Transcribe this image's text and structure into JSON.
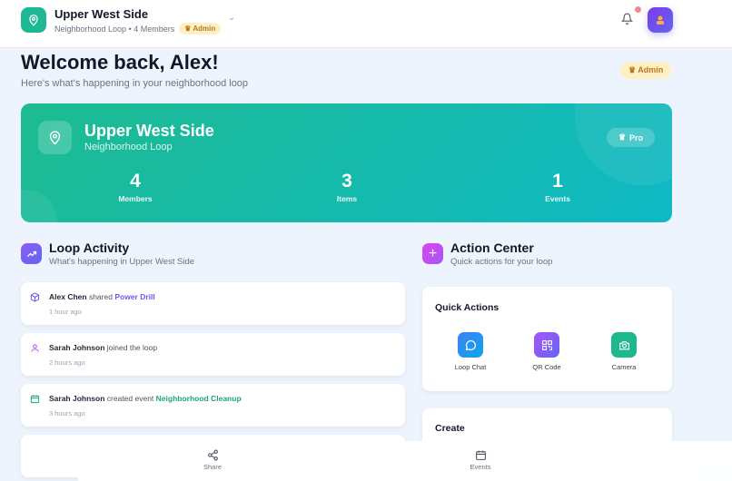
{
  "header": {
    "title": "Upper West Side",
    "subtitle": "Neighborhood Loop • 4 Members",
    "role_badge": "Admin"
  },
  "welcome": {
    "title": "Welcome back, Alex!",
    "subtitle": "Here's what's happening in your neighborhood loop",
    "role_badge": "Admin"
  },
  "hero": {
    "name": "Upper West Side",
    "type": "Neighborhood Loop",
    "plan": "Pro",
    "stats": [
      {
        "value": "4",
        "label": "Members"
      },
      {
        "value": "3",
        "label": "Items"
      },
      {
        "value": "1",
        "label": "Events"
      }
    ]
  },
  "activity": {
    "title": "Loop Activity",
    "subtitle": "What's happening in Upper West Side",
    "items": [
      {
        "actor": "Alex Chen",
        "action": "shared",
        "target": "Power Drill",
        "time": "1 hour ago",
        "icon": "box-icon",
        "color": "#6d5ae6"
      },
      {
        "actor": "Sarah Johnson",
        "action": "joined the loop",
        "target": "",
        "time": "2 hours ago",
        "icon": "user-icon",
        "color": "#a855f7"
      },
      {
        "actor": "Sarah Johnson",
        "action": "created event",
        "target": "Neighborhood Cleanup",
        "time": "3 hours ago",
        "icon": "calendar-icon",
        "color": "#1fa672"
      }
    ]
  },
  "action_center": {
    "title": "Action Center",
    "subtitle": "Quick actions for your loop",
    "quick_actions_title": "Quick Actions",
    "quick_actions": [
      {
        "label": "Loop Chat",
        "icon": "chat-icon"
      },
      {
        "label": "QR Code",
        "icon": "qr-code-icon"
      },
      {
        "label": "Camera",
        "icon": "camera-icon"
      }
    ],
    "create_title": "Create"
  },
  "bottom_nav": [
    {
      "label": "Share",
      "icon": "share-icon"
    },
    {
      "label": "Events",
      "icon": "calendar-icon"
    }
  ]
}
